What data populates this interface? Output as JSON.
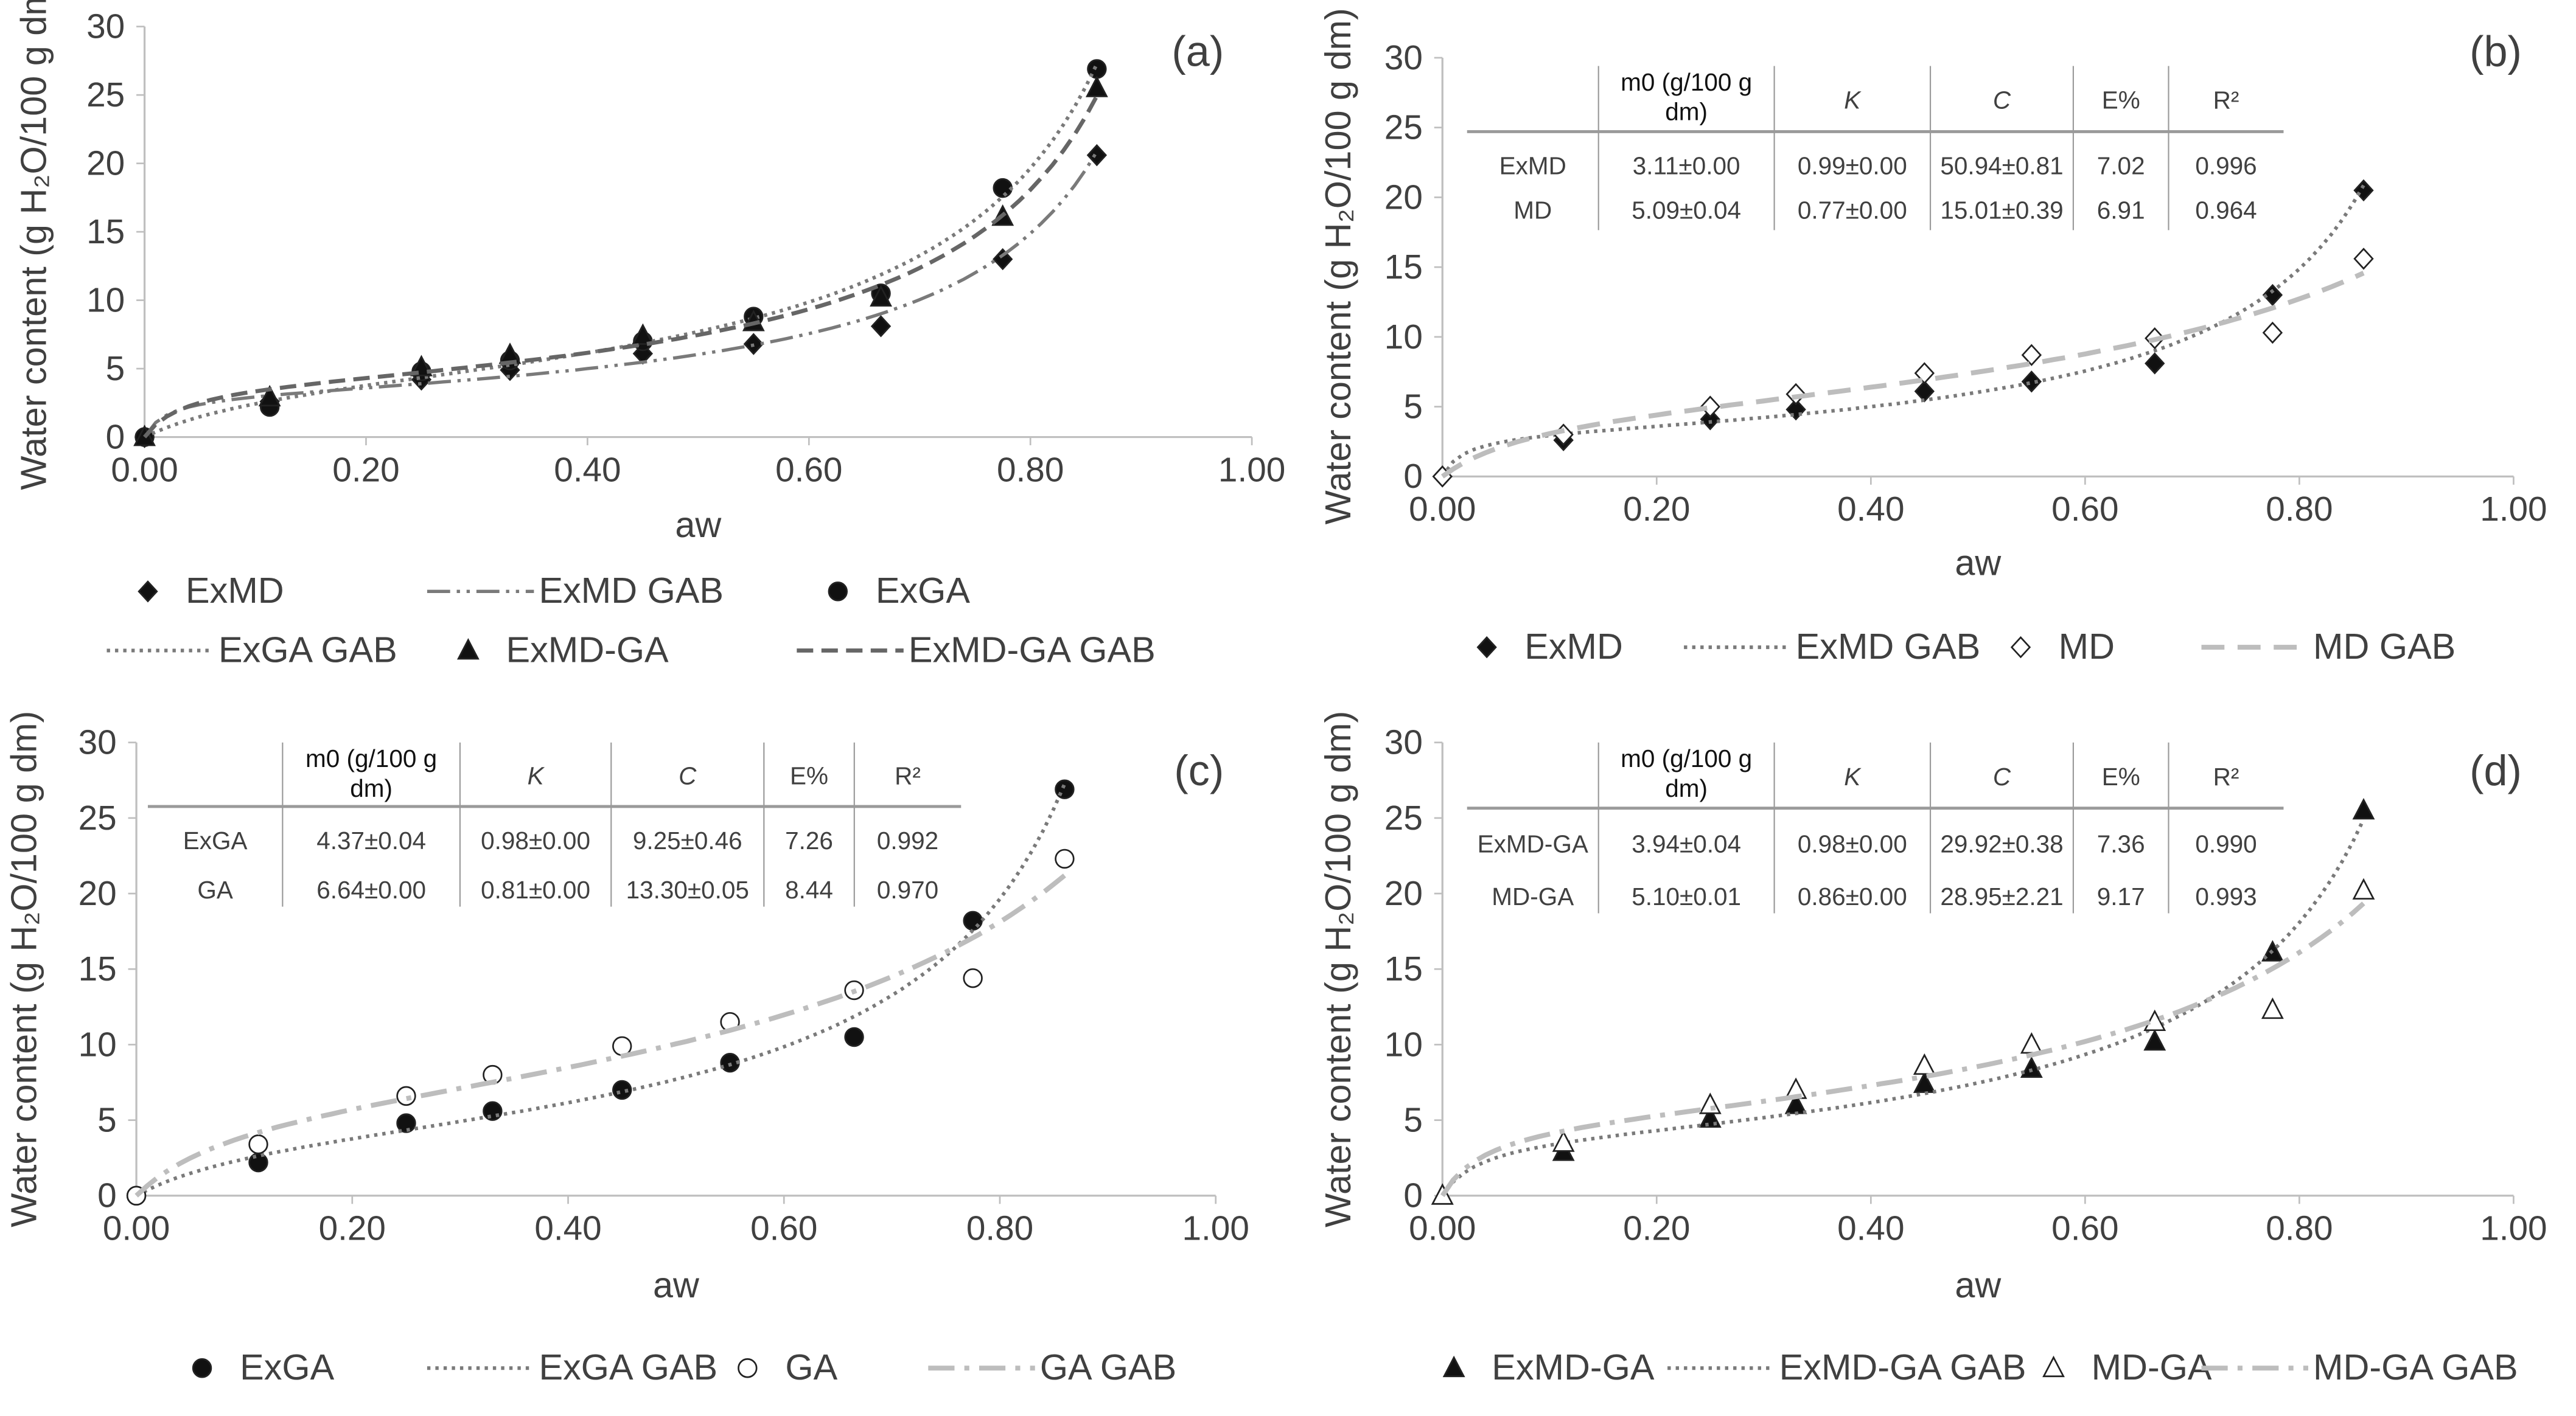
{
  "aw": [
    0,
    0.113,
    0.25,
    0.33,
    0.45,
    0.55,
    0.665,
    0.775,
    0.86
  ],
  "table_headers": [
    "m0 (g/100 g dm)",
    "K",
    "C",
    "E%",
    "R²"
  ],
  "chart_data": [
    {
      "panel": "(a)",
      "type": "scatter+line",
      "xlabel": "aw",
      "ylabel": "Water content (g H2O/100 g dm)",
      "xlim": [
        0,
        1
      ],
      "ylim": [
        0,
        30
      ],
      "xticks": [
        "0.00",
        "0.20",
        "0.40",
        "0.60",
        "0.80",
        "1.00"
      ],
      "yticks": [
        "0",
        "5",
        "10",
        "15",
        "20",
        "25",
        "30"
      ],
      "series": [
        {
          "name": "ExMD",
          "marker": "diamond-filled",
          "values": [
            0,
            2.6,
            4.2,
            4.9,
            6.1,
            6.8,
            8.1,
            13.0,
            20.6
          ]
        },
        {
          "name": "ExMD GAB",
          "line": "dash-dot-dot",
          "gab": {
            "m0": 3.11,
            "K": 0.99,
            "C": 50.94
          }
        },
        {
          "name": "ExGA",
          "marker": "circle-filled",
          "values": [
            0,
            2.2,
            4.8,
            5.6,
            7.0,
            8.8,
            10.5,
            18.2,
            26.9
          ]
        },
        {
          "name": "ExGA GAB",
          "line": "dotted",
          "gab": {
            "m0": 4.37,
            "K": 0.98,
            "C": 9.25
          }
        },
        {
          "name": "ExMD-GA",
          "marker": "triangle-filled",
          "values": [
            0,
            2.9,
            5.1,
            6.0,
            7.4,
            8.4,
            10.2,
            16.1,
            25.5
          ]
        },
        {
          "name": "ExMD-GA GAB",
          "line": "dashed",
          "gab": {
            "m0": 3.94,
            "K": 0.98,
            "C": 29.92
          }
        }
      ]
    },
    {
      "panel": "(b)",
      "type": "scatter+line",
      "xlabel": "aw",
      "ylabel": "Water content (g H2O/100 g dm)",
      "xlim": [
        0,
        1
      ],
      "ylim": [
        0,
        30
      ],
      "xticks": [
        "0.00",
        "0.20",
        "0.40",
        "0.60",
        "0.80",
        "1.00"
      ],
      "yticks": [
        "0",
        "5",
        "10",
        "15",
        "20",
        "25",
        "30"
      ],
      "table": {
        "rows": [
          {
            "label": "ExMD",
            "m0": "3.11±0.00",
            "K": "0.99±0.00",
            "C": "50.94±0.81",
            "E": "7.02",
            "R2": "0.996"
          },
          {
            "label": "MD",
            "m0": "5.09±0.04",
            "K": "0.77±0.00",
            "C": "15.01±0.39",
            "E": "6.91",
            "R2": "0.964"
          }
        ]
      },
      "series": [
        {
          "name": "ExMD",
          "marker": "diamond-filled",
          "values": [
            0,
            2.6,
            4.1,
            4.8,
            6.1,
            6.8,
            8.1,
            13.0,
            20.5
          ]
        },
        {
          "name": "ExMD GAB",
          "line": "dotted",
          "gab": {
            "m0": 3.11,
            "K": 0.99,
            "C": 50.94
          }
        },
        {
          "name": "MD",
          "marker": "diamond-open",
          "values": [
            0,
            3.0,
            5.0,
            5.9,
            7.4,
            8.7,
            9.9,
            10.3,
            15.6
          ]
        },
        {
          "name": "MD GAB",
          "line": "dashed-light",
          "gab": {
            "m0": 5.09,
            "K": 0.77,
            "C": 15.01
          }
        }
      ]
    },
    {
      "panel": "(c)",
      "type": "scatter+line",
      "xlabel": "aw",
      "ylabel": "Water content (g H2O/100 g dm)",
      "xlim": [
        0,
        1
      ],
      "ylim": [
        0,
        30
      ],
      "xticks": [
        "0.00",
        "0.20",
        "0.40",
        "0.60",
        "0.80",
        "1.00"
      ],
      "yticks": [
        "0",
        "5",
        "10",
        "15",
        "20",
        "25",
        "30"
      ],
      "table": {
        "rows": [
          {
            "label": "ExGA",
            "m0": "4.37±0.04",
            "K": "0.98±0.00",
            "C": "9.25±0.46",
            "E": "7.26",
            "R2": "0.992"
          },
          {
            "label": "GA",
            "m0": "6.64±0.00",
            "K": "0.81±0.00",
            "C": "13.30±0.05",
            "E": "8.44",
            "R2": "0.970"
          }
        ]
      },
      "series": [
        {
          "name": "ExGA",
          "marker": "circle-filled",
          "values": [
            0,
            2.2,
            4.8,
            5.6,
            7.0,
            8.8,
            10.5,
            18.2,
            26.9
          ]
        },
        {
          "name": "ExGA GAB",
          "line": "dotted",
          "gab": {
            "m0": 4.37,
            "K": 0.98,
            "C": 9.25
          }
        },
        {
          "name": "GA",
          "marker": "circle-open",
          "values": [
            0,
            3.4,
            6.6,
            8.0,
            9.9,
            11.5,
            13.6,
            14.4,
            22.3
          ]
        },
        {
          "name": "GA GAB",
          "line": "dash-dot-light",
          "gab": {
            "m0": 6.64,
            "K": 0.81,
            "C": 13.3
          }
        }
      ]
    },
    {
      "panel": "(d)",
      "type": "scatter+line",
      "xlabel": "aw",
      "ylabel": "Water content (g H2O/100 g dm)",
      "xlim": [
        0,
        1
      ],
      "ylim": [
        0,
        30
      ],
      "xticks": [
        "0.00",
        "0.20",
        "0.40",
        "0.60",
        "0.80",
        "1.00"
      ],
      "yticks": [
        "0",
        "5",
        "10",
        "15",
        "20",
        "25",
        "30"
      ],
      "table": {
        "rows": [
          {
            "label": "ExMD-GA",
            "m0": "3.94±0.04",
            "K": "0.98±0.00",
            "C": "29.92±0.38",
            "E": "7.36",
            "R2": "0.990"
          },
          {
            "label": "MD-GA",
            "m0": "5.10±0.01",
            "K": "0.86±0.00",
            "C": "28.95±2.21",
            "E": "9.17",
            "R2": "0.993"
          }
        ]
      },
      "series": [
        {
          "name": "ExMD-GA",
          "marker": "triangle-filled",
          "values": [
            0,
            2.9,
            5.1,
            6.0,
            7.4,
            8.4,
            10.2,
            16.1,
            25.5
          ]
        },
        {
          "name": "ExMD-GA GAB",
          "line": "dotted",
          "gab": {
            "m0": 3.94,
            "K": 0.98,
            "C": 29.92
          }
        },
        {
          "name": "MD-GA",
          "marker": "triangle-open",
          "values": [
            0,
            3.5,
            6.0,
            7.0,
            8.6,
            10.0,
            11.5,
            12.3,
            20.2
          ]
        },
        {
          "name": "MD-GA GAB",
          "line": "dash-dot-light",
          "gab": {
            "m0": 5.1,
            "K": 0.86,
            "C": 28.95
          }
        }
      ]
    }
  ]
}
